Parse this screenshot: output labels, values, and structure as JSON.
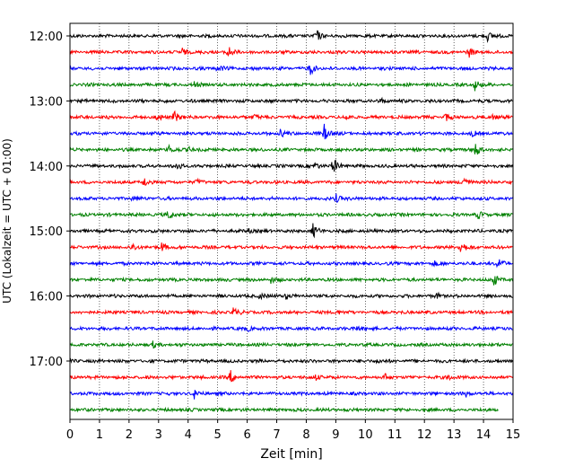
{
  "chart_data": {
    "type": "line",
    "title": "",
    "xlabel": "Zeit  [min]",
    "ylabel": "UTC (Lokalzeit = UTC + 01:00)",
    "xlim": [
      0,
      15
    ],
    "x_ticks": [
      0,
      1,
      2,
      3,
      4,
      5,
      6,
      7,
      8,
      9,
      10,
      11,
      12,
      13,
      14,
      15
    ],
    "y_tick_labels": [
      "12:00",
      "13:00",
      "14:00",
      "15:00",
      "16:00",
      "17:00"
    ],
    "line_interval_min": 15,
    "grid": "vertical dotted at each minute",
    "colors": [
      "#000000",
      "#ff0000",
      "#0000ff",
      "#008000"
    ],
    "series": [
      {
        "start": "12:00",
        "color": "#000000",
        "events": [
          [
            8.3,
            9
          ],
          [
            14.1,
            7
          ]
        ]
      },
      {
        "start": "12:15",
        "color": "#ff0000",
        "events": [
          [
            5.3,
            10
          ],
          [
            13.5,
            5
          ],
          [
            3.8,
            4
          ]
        ]
      },
      {
        "start": "12:30",
        "color": "#0000ff",
        "events": [
          [
            8.1,
            9
          ],
          [
            5.0,
            4
          ]
        ]
      },
      {
        "start": "12:45",
        "color": "#008000",
        "events": [
          [
            13.7,
            7
          ],
          [
            4.2,
            3
          ]
        ]
      },
      {
        "start": "13:00",
        "color": "#000000",
        "events": [
          [
            10.5,
            3
          ]
        ]
      },
      {
        "start": "13:15",
        "color": "#ff0000",
        "events": [
          [
            3.5,
            9
          ],
          [
            2.9,
            5
          ],
          [
            6.2,
            4
          ],
          [
            9.3,
            3
          ],
          [
            12.7,
            5
          ],
          [
            14.3,
            3
          ]
        ]
      },
      {
        "start": "13:30",
        "color": "#0000ff",
        "events": [
          [
            8.6,
            10
          ],
          [
            7.1,
            5
          ],
          [
            13.6,
            3
          ]
        ]
      },
      {
        "start": "13:45",
        "color": "#008000",
        "events": [
          [
            13.7,
            10
          ],
          [
            3.3,
            6
          ],
          [
            4.0,
            3
          ]
        ]
      },
      {
        "start": "14:00",
        "color": "#000000",
        "events": [
          [
            8.9,
            10
          ],
          [
            3.6,
            5
          ],
          [
            8.3,
            4
          ]
        ]
      },
      {
        "start": "14:15",
        "color": "#ff0000",
        "events": [
          [
            13.3,
            9
          ],
          [
            2.5,
            5
          ],
          [
            4.3,
            3
          ]
        ]
      },
      {
        "start": "14:30",
        "color": "#0000ff",
        "events": [
          [
            9.0,
            5
          ],
          [
            2.1,
            3
          ]
        ]
      },
      {
        "start": "14:45",
        "color": "#008000",
        "events": [
          [
            3.3,
            8
          ],
          [
            13.8,
            4
          ]
        ]
      },
      {
        "start": "15:00",
        "color": "#000000",
        "events": [
          [
            8.2,
            9
          ],
          [
            6.0,
            3
          ]
        ]
      },
      {
        "start": "15:15",
        "color": "#ff0000",
        "events": [
          [
            13.2,
            10
          ],
          [
            3.1,
            6
          ],
          [
            2.1,
            5
          ]
        ]
      },
      {
        "start": "15:30",
        "color": "#0000ff",
        "events": [
          [
            14.5,
            7
          ],
          [
            12.3,
            3
          ]
        ]
      },
      {
        "start": "15:45",
        "color": "#008000",
        "events": [
          [
            14.3,
            10
          ],
          [
            6.8,
            3
          ]
        ]
      },
      {
        "start": "16:00",
        "color": "#000000",
        "events": [
          [
            6.4,
            5
          ],
          [
            7.3,
            4
          ],
          [
            12.4,
            3
          ]
        ]
      },
      {
        "start": "16:15",
        "color": "#ff0000",
        "events": [
          [
            5.5,
            6
          ],
          [
            9.0,
            3
          ]
        ]
      },
      {
        "start": "16:30",
        "color": "#0000ff",
        "events": [
          [
            9.7,
            4
          ],
          [
            6.0,
            3
          ]
        ]
      },
      {
        "start": "16:45",
        "color": "#008000",
        "events": [
          [
            2.8,
            3
          ]
        ]
      },
      {
        "start": "17:00",
        "color": "#000000",
        "events": [
          [
            10.4,
            3
          ]
        ]
      },
      {
        "start": "17:15",
        "color": "#ff0000",
        "events": [
          [
            5.4,
            9
          ],
          [
            10.6,
            5
          ],
          [
            8.3,
            4
          ],
          [
            12.8,
            3
          ]
        ]
      },
      {
        "start": "17:30",
        "color": "#0000ff",
        "events": [
          [
            4.2,
            5
          ],
          [
            13.4,
            3
          ]
        ]
      },
      {
        "start": "17:45",
        "color": "#008000",
        "end_x": 14.5,
        "events": []
      }
    ]
  }
}
